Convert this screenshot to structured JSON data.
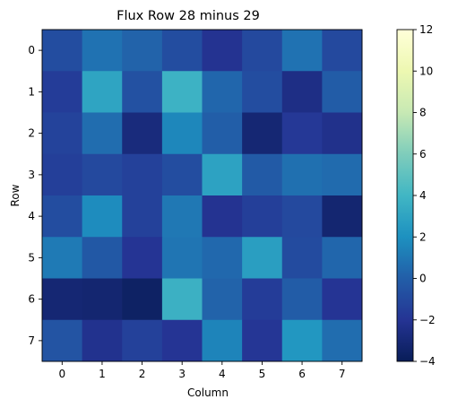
{
  "chart_data": {
    "type": "heatmap",
    "title": "Flux Row 28 minus 29",
    "xlabel": "Column",
    "ylabel": "Row",
    "x_ticks": [
      "0",
      "1",
      "2",
      "3",
      "4",
      "5",
      "6",
      "7"
    ],
    "y_ticks": [
      "0",
      "1",
      "2",
      "3",
      "4",
      "5",
      "6",
      "7"
    ],
    "colorscale": "YlGnBu",
    "vmin": -4,
    "vmax": 12,
    "colorbar_ticks": [
      "−4",
      "−2",
      "0",
      "2",
      "4",
      "6",
      "8",
      "10",
      "12"
    ],
    "colorbar_tick_values": [
      -4,
      -2,
      0,
      2,
      4,
      6,
      8,
      10,
      12
    ],
    "values": [
      [
        -0.8,
        0.8,
        0.2,
        -0.8,
        -2.1,
        -1.0,
        0.8,
        -1.0
      ],
      [
        -1.6,
        3.0,
        -0.6,
        3.8,
        0.3,
        -0.8,
        -2.5,
        -0.1
      ],
      [
        -1.3,
        0.6,
        -2.8,
        1.6,
        0.0,
        -3.1,
        -1.8,
        -2.3
      ],
      [
        -1.5,
        -1.0,
        -1.4,
        -0.8,
        2.9,
        -0.2,
        0.7,
        0.5
      ],
      [
        -0.8,
        1.8,
        -1.4,
        1.0,
        -2.1,
        -1.5,
        -1.0,
        -3.2
      ],
      [
        1.1,
        -0.3,
        -2.0,
        0.9,
        0.4,
        2.7,
        -0.9,
        0.3
      ],
      [
        -3.1,
        -3.2,
        -3.6,
        3.7,
        0.2,
        -1.6,
        -0.1,
        -2.0
      ],
      [
        -0.5,
        -2.2,
        -1.4,
        -2.0,
        1.5,
        -1.9,
        2.3,
        0.6
      ]
    ]
  }
}
